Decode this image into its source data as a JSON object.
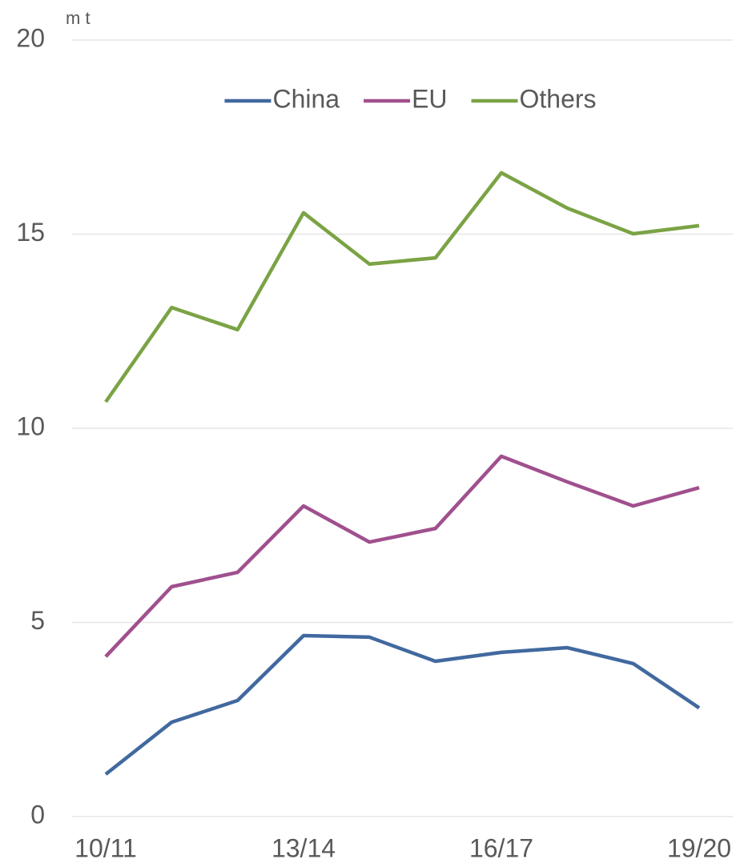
{
  "chart_data": {
    "type": "line",
    "y_axis_label": "m t",
    "categories": [
      "10/11",
      null,
      null,
      "13/14",
      null,
      null,
      "16/17",
      null,
      null,
      "19/20"
    ],
    "series": [
      {
        "name": "China",
        "color": "#41699f",
        "values": [
          1.09,
          2.43,
          2.99,
          4.66,
          4.62,
          4.0,
          4.23,
          4.35,
          3.94,
          2.8
        ]
      },
      {
        "name": "EU",
        "color": "#a0508e",
        "values": [
          4.12,
          5.92,
          6.29,
          8.0,
          7.07,
          7.42,
          9.28,
          8.62,
          8.0,
          8.47
        ]
      },
      {
        "name": "Others",
        "color": "#7ba345",
        "values": [
          10.68,
          13.11,
          12.54,
          15.55,
          14.23,
          14.39,
          16.58,
          15.67,
          15.01,
          15.22
        ]
      }
    ],
    "ylim": [
      0,
      20
    ],
    "yticks": [
      0,
      5,
      10,
      15,
      20
    ],
    "grid": true,
    "legend": "top"
  }
}
